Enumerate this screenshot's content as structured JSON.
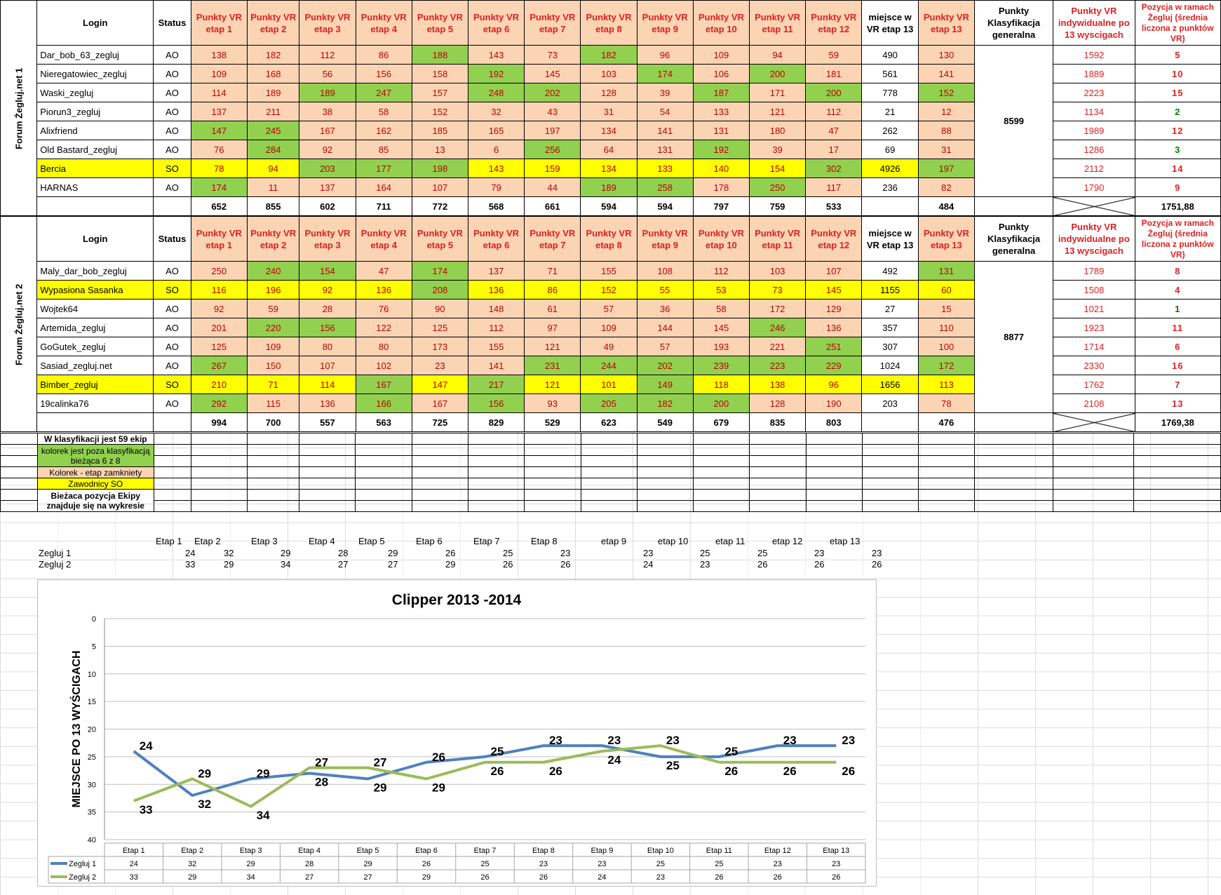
{
  "headers": {
    "login": "Login",
    "status": "Status",
    "stage_cols": [
      "Punkty VR etap 1",
      "Punkty VR etap 2",
      "Punkty VR etap 3",
      "Punkty VR etap 4",
      "Punkty VR etap 5",
      "Punkty VR etap 6",
      "Punkty VR etap 7",
      "Punkty VR etap 8",
      "Punkty VR etap 9",
      "Punkty VR etap 10",
      "Punkty VR etap 11",
      "Punkty VR etap 12"
    ],
    "place13": "miejsce w VR etap 13",
    "pts13": "Punkty VR etap 13",
    "general": "Punkty Klasyfikacja generalna",
    "individual": "Punkty VR indywidualne po 13 wyscigach",
    "position": "Pozycja w ramach Żegluj (średnia liczona z punktów VR)"
  },
  "teams": [
    {
      "name": "Forum Żegluj.net 1",
      "general": "8599",
      "total": "1751,88",
      "rows": [
        {
          "login": "Dar_bob_63_zegluj",
          "status": "AO",
          "vals": [
            "138",
            "182",
            "112",
            "86",
            "188",
            "143",
            "73",
            "182",
            "96",
            "109",
            "94",
            "59"
          ],
          "place": "490",
          "pts13": "130",
          "ind": "1592",
          "pos": "5",
          "color": "p",
          "greens": [
            4,
            7
          ],
          "yellow": false
        },
        {
          "login": "Nieregatowiec_zegluj",
          "status": "AO",
          "vals": [
            "109",
            "168",
            "56",
            "156",
            "158",
            "192",
            "145",
            "103",
            "174",
            "106",
            "200",
            "181"
          ],
          "place": "561",
          "pts13": "141",
          "ind": "1889",
          "pos": "10",
          "greens": [
            5,
            8,
            10
          ],
          "yellow": false
        },
        {
          "login": "Waski_zegluj",
          "status": "AO",
          "vals": [
            "114",
            "189",
            "189",
            "247",
            "157",
            "248",
            "202",
            "128",
            "39",
            "187",
            "171",
            "200"
          ],
          "place": "778",
          "pts13": "152",
          "ind": "2223",
          "pos": "15",
          "greens": [
            2,
            3,
            5,
            6,
            9,
            11,
            13
          ],
          "yellow": false
        },
        {
          "login": "Piorun3_zegluj",
          "status": "AO",
          "vals": [
            "137",
            "211",
            "38",
            "58",
            "152",
            "32",
            "43",
            "31",
            "54",
            "133",
            "121",
            "112"
          ],
          "place": "21",
          "pts13": "12",
          "ind": "1134",
          "pos": "2",
          "greens": [],
          "yellow": false,
          "posgreen": true
        },
        {
          "login": "Alixfriend",
          "status": "AO",
          "vals": [
            "147",
            "245",
            "167",
            "162",
            "185",
            "165",
            "197",
            "134",
            "141",
            "131",
            "180",
            "47"
          ],
          "place": "262",
          "pts13": "88",
          "ind": "1989",
          "pos": "12",
          "greens": [
            0,
            1
          ],
          "yellow": false
        },
        {
          "login": "Old Bastard_zegluj",
          "status": "AO",
          "vals": [
            "76",
            "284",
            "92",
            "85",
            "13",
            "6",
            "256",
            "64",
            "131",
            "192",
            "39",
            "17"
          ],
          "place": "69",
          "pts13": "31",
          "ind": "1286",
          "pos": "3",
          "greens": [
            1,
            6,
            9
          ],
          "yellow": false,
          "posgreen": true
        },
        {
          "login": "Bercia",
          "status": "SO",
          "vals": [
            "78",
            "94",
            "203",
            "177",
            "198",
            "143",
            "159",
            "134",
            "133",
            "140",
            "154",
            "302"
          ],
          "place": "4926",
          "pts13": "197",
          "ind": "2112",
          "pos": "14",
          "greens": [
            2,
            3,
            4,
            11,
            13
          ],
          "yellow": true
        },
        {
          "login": "HARNAS",
          "status": "AO",
          "vals": [
            "174",
            "11",
            "137",
            "164",
            "107",
            "79",
            "44",
            "189",
            "258",
            "178",
            "250",
            "117"
          ],
          "place": "236",
          "pts13": "82",
          "ind": "1790",
          "pos": "9",
          "greens": [
            0,
            7,
            8,
            10
          ],
          "yellow": false
        }
      ],
      "sums": [
        "652",
        "855",
        "602",
        "711",
        "772",
        "568",
        "661",
        "594",
        "594",
        "797",
        "759",
        "533"
      ],
      "sum13": "484"
    },
    {
      "name": "Forum Żegluj.net 2",
      "general": "8877",
      "total": "1769,38",
      "rows": [
        {
          "login": "Maly_dar_bob_zegluj",
          "status": "AO",
          "vals": [
            "250",
            "240",
            "154",
            "47",
            "174",
            "137",
            "71",
            "155",
            "108",
            "112",
            "103",
            "107"
          ],
          "place": "492",
          "pts13": "131",
          "ind": "1789",
          "pos": "8",
          "greens": [
            1,
            2,
            4,
            13
          ],
          "yellow": false
        },
        {
          "login": "Wypasiona Sasanka",
          "status": "SO",
          "vals": [
            "116",
            "196",
            "92",
            "136",
            "208",
            "136",
            "86",
            "152",
            "55",
            "53",
            "73",
            "145"
          ],
          "place": "1155",
          "pts13": "60",
          "ind": "1508",
          "pos": "4",
          "greens": [
            4
          ],
          "yellow": true
        },
        {
          "login": "Wojtek64",
          "status": "AO",
          "vals": [
            "92",
            "59",
            "28",
            "76",
            "90",
            "148",
            "61",
            "57",
            "36",
            "58",
            "172",
            "129"
          ],
          "place": "27",
          "pts13": "15",
          "ind": "1021",
          "pos": "1",
          "greens": [],
          "yellow": false,
          "posgreen": true
        },
        {
          "login": "Artemida_zegluj",
          "status": "AO",
          "vals": [
            "201",
            "220",
            "156",
            "122",
            "125",
            "112",
            "97",
            "109",
            "144",
            "145",
            "246",
            "136"
          ],
          "place": "357",
          "pts13": "110",
          "ind": "1923",
          "pos": "11",
          "greens": [
            1,
            2,
            10
          ],
          "yellow": false
        },
        {
          "login": "GoGutek_zegluj",
          "status": "AO",
          "vals": [
            "125",
            "109",
            "80",
            "80",
            "173",
            "155",
            "121",
            "49",
            "57",
            "193",
            "221",
            "251"
          ],
          "place": "307",
          "pts13": "100",
          "ind": "1714",
          "pos": "6",
          "greens": [
            11
          ],
          "yellow": false
        },
        {
          "login": "Sasiad_zegluj.net",
          "status": "AO",
          "vals": [
            "267",
            "150",
            "107",
            "102",
            "23",
            "141",
            "231",
            "244",
            "202",
            "239",
            "223",
            "229"
          ],
          "place": "1024",
          "pts13": "172",
          "ind": "2330",
          "pos": "16",
          "greens": [
            0,
            6,
            7,
            8,
            9,
            10,
            11,
            13
          ],
          "yellow": false
        },
        {
          "login": "Bimber_zegluj",
          "status": "SO",
          "vals": [
            "210",
            "71",
            "114",
            "167",
            "147",
            "217",
            "121",
            "101",
            "149",
            "118",
            "138",
            "96"
          ],
          "place": "1656",
          "pts13": "113",
          "ind": "1762",
          "pos": "7",
          "greens": [
            3,
            5,
            8
          ],
          "yellow": true
        },
        {
          "login": "19calinka76",
          "status": "AO",
          "vals": [
            "292",
            "115",
            "136",
            "166",
            "167",
            "156",
            "93",
            "205",
            "182",
            "200",
            "128",
            "190"
          ],
          "place": "203",
          "pts13": "78",
          "ind": "2108",
          "pos": "13",
          "greens": [
            0,
            3,
            5,
            7,
            8,
            9
          ],
          "yellow": false
        }
      ],
      "sums": [
        "994",
        "700",
        "557",
        "563",
        "725",
        "829",
        "529",
        "623",
        "549",
        "679",
        "835",
        "803"
      ],
      "sum13": "476"
    }
  ],
  "legend": {
    "teams_count": "W klasyfikacji jest 59 ekip",
    "green": "kolorek jest  poza klasyfikacją bieżąca 6 z 8",
    "peach": "Kolorek - etap zamkniety",
    "yellow": "Zawodnicy SO",
    "current": "Bieżaca pozycja Ekipy znajduje się na wykresie"
  },
  "mini_table": {
    "stages": [
      "Etap 1",
      "Etap 2",
      "Etap 3",
      "Etap 4",
      "Etap 5",
      "Etap 6",
      "Etap 7",
      "Etap 8",
      "etap 9",
      "etap 10",
      "etap 11",
      "etap 12",
      "etap 13"
    ],
    "rows": [
      {
        "name": "Zegluj 1",
        "vals": [
          "24",
          "32",
          "29",
          "28",
          "29",
          "26",
          "25",
          "23",
          "23",
          "25",
          "25",
          "23",
          "23"
        ]
      },
      {
        "name": "Zegluj 2",
        "vals": [
          "33",
          "29",
          "34",
          "27",
          "27",
          "29",
          "26",
          "26",
          "24",
          "23",
          "26",
          "26",
          "26"
        ]
      }
    ]
  },
  "colors": {
    "blue": "#4f81bd",
    "green": "#9bbb59",
    "peach": "#fbd4b4",
    "grn": "#92d050",
    "yel": "#ffff00",
    "red": "#e02020"
  },
  "chart_data": {
    "type": "line",
    "title": "Clipper 2013 -2014",
    "ylabel": "MIEJSCE PO 13 WYŚCIGACH",
    "xlabel": "",
    "ylim": [
      40,
      0
    ],
    "yticks": [
      0,
      5,
      10,
      15,
      20,
      25,
      30,
      35,
      40
    ],
    "categories": [
      "Etap 1",
      "Etap 2",
      "Etap 3",
      "Etap 4",
      "Etap 5",
      "Etap 6",
      "Etap 7",
      "Etap 8",
      "Etap 9",
      "Etap 10",
      "Etap 11",
      "Etap 12",
      "Etap 13"
    ],
    "series": [
      {
        "name": "Zegluj 1",
        "color": "#4f81bd",
        "values": [
          24,
          32,
          29,
          28,
          29,
          26,
          25,
          23,
          23,
          25,
          25,
          23,
          23
        ]
      },
      {
        "name": "Zegluj 2",
        "color": "#9bbb59",
        "values": [
          33,
          29,
          34,
          27,
          27,
          29,
          26,
          26,
          24,
          23,
          26,
          26,
          26
        ]
      }
    ],
    "grid": true,
    "legend": "bottom data table"
  }
}
